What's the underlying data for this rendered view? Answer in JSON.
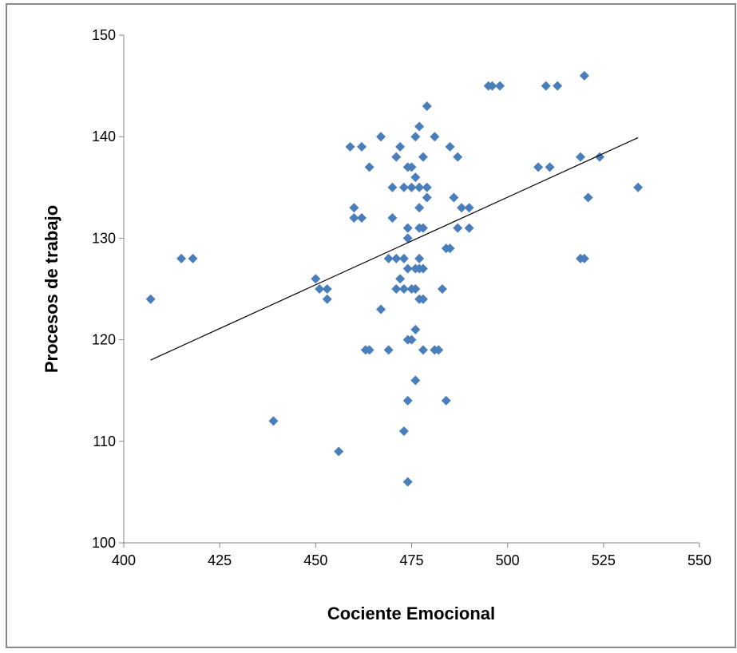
{
  "chart_data": {
    "type": "scatter",
    "x_label": "Cociente Emocional",
    "y_label": "Procesos de trabajo",
    "color": "#4a7ebb",
    "xlim": [
      400,
      550
    ],
    "xticks": [
      400,
      425,
      450,
      475,
      500,
      525,
      550
    ],
    "ylim": [
      100,
      150
    ],
    "yticks": [
      100,
      110,
      120,
      130,
      140,
      150
    ],
    "x": [
      407,
      415,
      418,
      439,
      450,
      451,
      453,
      453,
      456,
      459,
      460,
      460,
      462,
      462,
      464,
      463,
      464,
      467,
      467,
      469,
      469,
      470,
      470,
      471,
      471,
      471,
      472,
      472,
      473,
      473,
      473,
      473,
      474,
      474,
      474,
      474,
      474,
      474,
      474,
      475,
      475,
      475,
      475,
      476,
      476,
      476,
      476,
      476,
      476,
      477,
      477,
      477,
      477,
      477,
      477,
      477,
      478,
      478,
      478,
      478,
      478,
      479,
      479,
      479,
      481,
      481,
      482,
      483,
      484,
      484,
      485,
      485,
      486,
      487,
      487,
      488,
      490,
      490,
      495,
      496,
      498,
      508,
      510,
      511,
      513,
      519,
      519,
      520,
      520,
      521,
      524,
      534
    ],
    "y": [
      124,
      128,
      128,
      112,
      126,
      125,
      125,
      124,
      109,
      139,
      133,
      132,
      132,
      139,
      137,
      119,
      119,
      140,
      123,
      119,
      128,
      132,
      135,
      138,
      128,
      125,
      126,
      139,
      135,
      128,
      111,
      125,
      137,
      131,
      130,
      127,
      120,
      114,
      106,
      137,
      135,
      125,
      120,
      136,
      140,
      121,
      116,
      127,
      125,
      141,
      135,
      133,
      131,
      128,
      127,
      124,
      138,
      131,
      127,
      124,
      119,
      135,
      134,
      143,
      140,
      119,
      119,
      125,
      129,
      114,
      129,
      139,
      134,
      138,
      131,
      133,
      133,
      131,
      145,
      145,
      145,
      137,
      145,
      137,
      145,
      138,
      128,
      128,
      146,
      134,
      138,
      135
    ],
    "trendline": {
      "x": [
        407,
        534
      ],
      "y": [
        118,
        139.9
      ],
      "color": "#000000"
    }
  }
}
